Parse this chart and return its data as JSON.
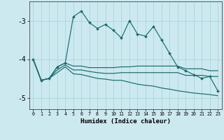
{
  "xlabel": "Humidex (Indice chaleur)",
  "background_color": "#cce9f0",
  "grid_color": "#aad4de",
  "line_color": "#1a6b6b",
  "x_values": [
    0,
    1,
    2,
    3,
    4,
    5,
    6,
    7,
    8,
    9,
    10,
    11,
    12,
    13,
    14,
    15,
    16,
    17,
    18,
    19,
    20,
    21,
    22,
    23
  ],
  "series1": [
    -4.0,
    -4.55,
    -4.5,
    -4.2,
    -4.1,
    -2.9,
    -2.75,
    -3.05,
    -3.2,
    -3.1,
    -3.25,
    -3.45,
    -3.0,
    -3.35,
    -3.4,
    -3.15,
    -3.5,
    -3.85,
    -4.2,
    -4.3,
    -4.4,
    -4.5,
    -4.45,
    -4.82
  ],
  "series2": [
    -4.0,
    -4.55,
    -4.5,
    -4.2,
    -4.1,
    -4.18,
    -4.18,
    -4.22,
    -4.22,
    -4.22,
    -4.22,
    -4.2,
    -4.2,
    -4.18,
    -4.18,
    -4.18,
    -4.18,
    -4.18,
    -4.18,
    -4.25,
    -4.25,
    -4.25,
    -4.3,
    -4.3
  ],
  "series3": [
    -4.0,
    -4.55,
    -4.5,
    -4.28,
    -4.15,
    -4.28,
    -4.28,
    -4.32,
    -4.35,
    -4.37,
    -4.37,
    -4.35,
    -4.35,
    -4.35,
    -4.35,
    -4.35,
    -4.35,
    -4.35,
    -4.35,
    -4.42,
    -4.42,
    -4.42,
    -4.45,
    -4.45
  ],
  "series4": [
    -4.0,
    -4.55,
    -4.5,
    -4.35,
    -4.2,
    -4.38,
    -4.4,
    -4.45,
    -4.5,
    -4.52,
    -4.55,
    -4.55,
    -4.6,
    -4.65,
    -4.68,
    -4.7,
    -4.75,
    -4.78,
    -4.82,
    -4.85,
    -4.88,
    -4.9,
    -4.92,
    -4.95
  ],
  "ylim": [
    -5.3,
    -2.5
  ],
  "xlim": [
    -0.5,
    23.5
  ],
  "yticks": [
    -5,
    -4,
    -3
  ],
  "xticks": [
    0,
    1,
    2,
    3,
    4,
    5,
    6,
    7,
    8,
    9,
    10,
    11,
    12,
    13,
    14,
    15,
    16,
    17,
    18,
    19,
    20,
    21,
    22,
    23
  ]
}
